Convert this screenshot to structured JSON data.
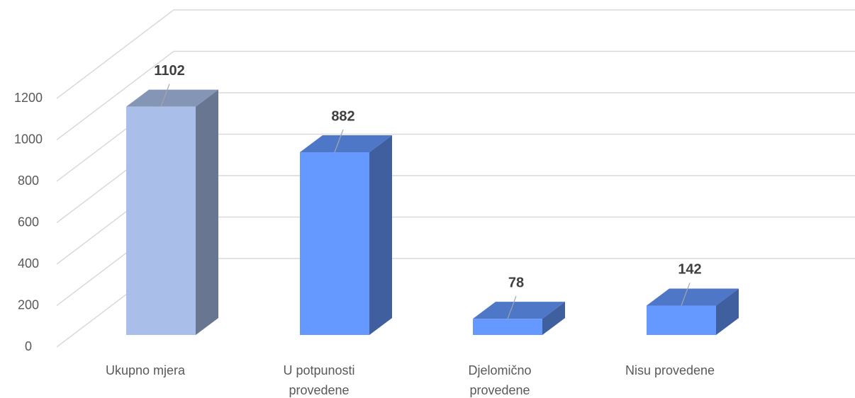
{
  "chart_data": {
    "type": "bar3d",
    "categories": [
      "Ukupno mjera",
      "U potpunosti provedene",
      "Djelomično provedene",
      "Nisu provedene"
    ],
    "values": [
      1102,
      882,
      78,
      142
    ],
    "colors": [
      "#a9bfea",
      "#6699ff",
      "#6699ff",
      "#6699ff"
    ],
    "ylim": [
      0,
      1200
    ],
    "yticks": [
      0,
      200,
      400,
      600,
      800,
      1000,
      1200
    ],
    "grid": true
  }
}
